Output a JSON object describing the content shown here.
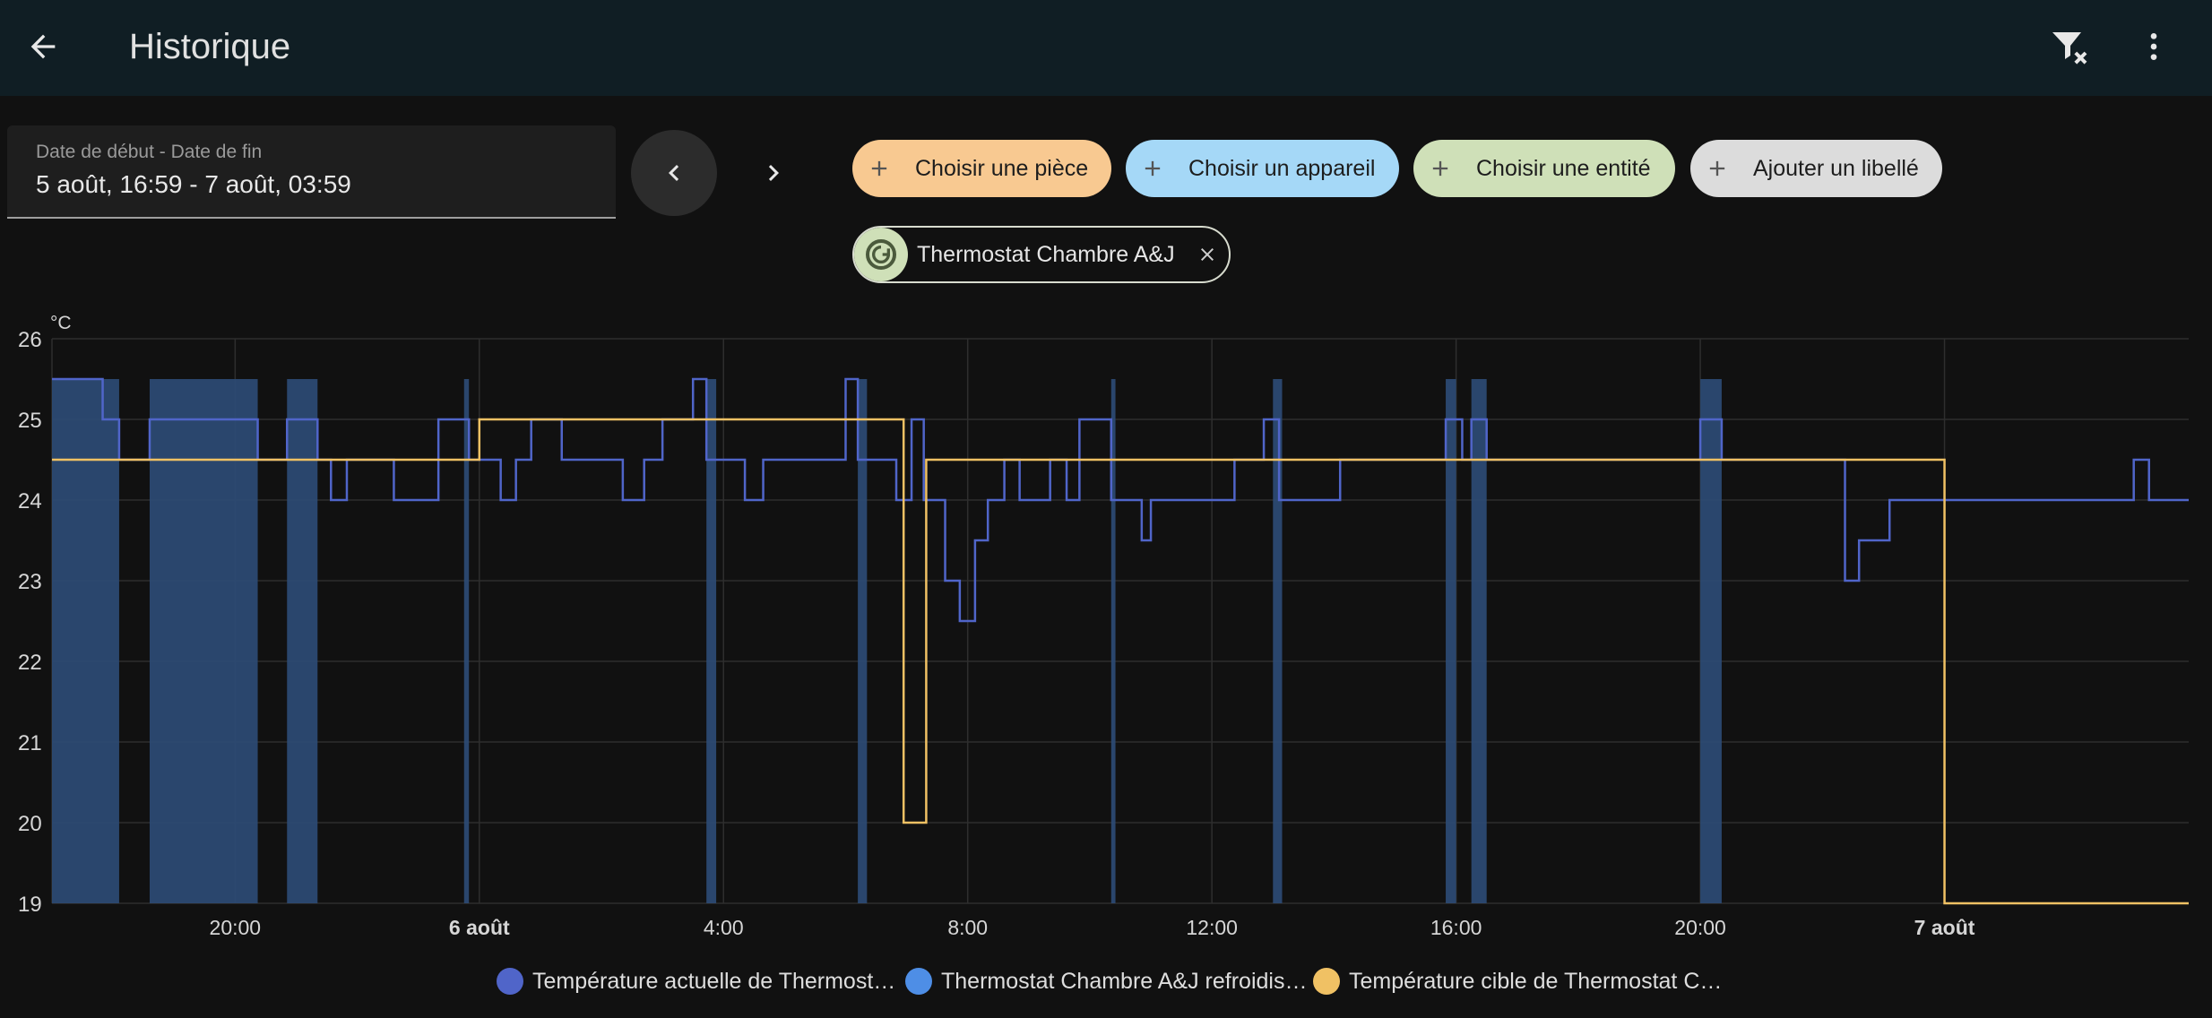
{
  "header": {
    "title": "Historique",
    "back_icon": "arrow-left-icon",
    "filter_clear_icon": "filter-remove-icon",
    "menu_icon": "dots-vertical-icon",
    "background": "#101e24"
  },
  "date_range": {
    "label": "Date de début - Date de fin",
    "value": "5 août, 16:59 - 7 août, 03:59"
  },
  "navigation": {
    "prev_icon": "chevron-left-icon",
    "next_icon": "chevron-right-icon"
  },
  "target_chips": [
    {
      "label": "Choisir une pièce",
      "icon": "plus-icon",
      "color": "#f8c991"
    },
    {
      "label": "Choisir un appareil",
      "icon": "plus-icon",
      "color": "#a5d8f7"
    },
    {
      "label": "Choisir une entité",
      "icon": "plus-icon",
      "color": "#cfe0b8"
    },
    {
      "label": "Ajouter un libellé",
      "icon": "plus-icon",
      "color": "#dcdcdc"
    }
  ],
  "selected_entity": {
    "name": "Thermostat Chambre A&J",
    "icon": "thermostat-auto-icon",
    "remove_icon": "close-icon"
  },
  "chart_data": {
    "type": "line",
    "unit": "°C",
    "ylim": [
      19,
      26
    ],
    "yticks": [
      "19",
      "20",
      "21",
      "22",
      "23",
      "24",
      "25",
      "26"
    ],
    "x_ticks": [
      {
        "label": "20:00",
        "bold": false,
        "t": 20
      },
      {
        "label": "6 août",
        "bold": true,
        "t": 24
      },
      {
        "label": "4:00",
        "bold": false,
        "t": 28
      },
      {
        "label": "8:00",
        "bold": false,
        "t": 32
      },
      {
        "label": "12:00",
        "bold": false,
        "t": 36
      },
      {
        "label": "16:00",
        "bold": false,
        "t": 40
      },
      {
        "label": "20:00",
        "bold": false,
        "t": 44
      },
      {
        "label": "7 août",
        "bold": true,
        "t": 48
      }
    ],
    "x_range_hours": [
      17,
      52
    ],
    "grid": true,
    "series": [
      {
        "name": "Température actuelle de Thermost…",
        "color": "#5065c9",
        "steps": [
          [
            17.0,
            25.5
          ],
          [
            17.83,
            25.0
          ],
          [
            18.1,
            24.5
          ],
          [
            18.6,
            25.0
          ],
          [
            20.37,
            24.5
          ],
          [
            20.85,
            25.0
          ],
          [
            21.35,
            24.5
          ],
          [
            21.57,
            24.0
          ],
          [
            21.83,
            24.5
          ],
          [
            22.6,
            24.0
          ],
          [
            23.33,
            25.0
          ],
          [
            23.83,
            24.5
          ],
          [
            24.35,
            24.0
          ],
          [
            24.6,
            24.5
          ],
          [
            24.85,
            25.0
          ],
          [
            25.35,
            24.5
          ],
          [
            26.35,
            24.0
          ],
          [
            26.7,
            24.5
          ],
          [
            27.0,
            25.0
          ],
          [
            27.5,
            25.5
          ],
          [
            27.72,
            24.5
          ],
          [
            28.35,
            24.0
          ],
          [
            28.65,
            24.5
          ],
          [
            30.0,
            25.5
          ],
          [
            30.2,
            24.5
          ],
          [
            30.83,
            24.0
          ],
          [
            31.08,
            25.0
          ],
          [
            31.28,
            24.0
          ],
          [
            31.63,
            23.0
          ],
          [
            31.87,
            22.5
          ],
          [
            32.12,
            23.5
          ],
          [
            32.33,
            24.0
          ],
          [
            32.6,
            24.5
          ],
          [
            32.85,
            24.0
          ],
          [
            33.35,
            24.5
          ],
          [
            33.62,
            24.0
          ],
          [
            33.83,
            25.0
          ],
          [
            34.35,
            24.0
          ],
          [
            34.85,
            23.5
          ],
          [
            35.0,
            24.0
          ],
          [
            36.37,
            24.5
          ],
          [
            36.85,
            25.0
          ],
          [
            37.1,
            24.0
          ],
          [
            38.1,
            24.5
          ],
          [
            39.83,
            25.0
          ],
          [
            40.1,
            24.5
          ],
          [
            40.25,
            25.0
          ],
          [
            40.5,
            24.5
          ],
          [
            44.0,
            25.0
          ],
          [
            44.35,
            24.5
          ],
          [
            46.37,
            23.0
          ],
          [
            46.6,
            23.5
          ],
          [
            47.1,
            24.0
          ],
          [
            51.1,
            24.5
          ],
          [
            51.35,
            24.0
          ],
          [
            52.0,
            24.0
          ]
        ]
      },
      {
        "name": "Thermostat Chambre A&J refroidis…",
        "color": "#4e8ee6",
        "fill": "#2c4a73",
        "intervals": [
          [
            17.0,
            18.1
          ],
          [
            18.6,
            20.37
          ],
          [
            20.85,
            21.35
          ],
          [
            23.75,
            23.83
          ],
          [
            27.72,
            27.88
          ],
          [
            30.2,
            30.35
          ],
          [
            34.35,
            34.42
          ],
          [
            37.0,
            37.15
          ],
          [
            39.83,
            40.0
          ],
          [
            40.25,
            40.5
          ],
          [
            44.0,
            44.35
          ]
        ]
      },
      {
        "name": "Température cible de Thermostat C…",
        "color": "#f0c164",
        "steps": [
          [
            17.0,
            24.5
          ],
          [
            24.0,
            25.0
          ],
          [
            30.95,
            20.0
          ],
          [
            31.32,
            24.5
          ],
          [
            48.0,
            19.0
          ],
          [
            52.0,
            19.0
          ]
        ]
      }
    ]
  }
}
